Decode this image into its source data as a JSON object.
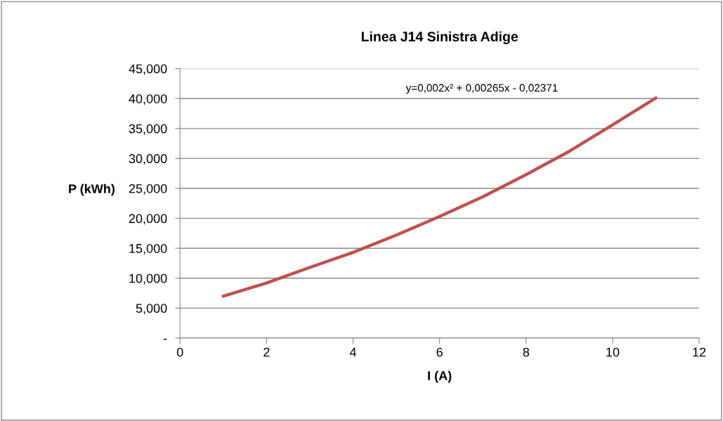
{
  "chart_data": {
    "type": "line",
    "title": "Linea J14 Sinistra Adige",
    "xlabel": "I (A)",
    "ylabel": "P (kWh)",
    "annotations": [
      "y=0,002x² + 0,00265x - 0,02371"
    ],
    "x": [
      1,
      2,
      3,
      4,
      5,
      6,
      7,
      8,
      9,
      10,
      11
    ],
    "series": [
      {
        "color": "#c0504d",
        "values": [
          7000,
          9200,
          11800,
          14300,
          17200,
          20300,
          23600,
          27300,
          31200,
          35600,
          40100
        ]
      }
    ],
    "xlim": [
      0,
      12
    ],
    "xticks": [
      0,
      2,
      4,
      6,
      8,
      10,
      12
    ],
    "ylim": [
      0,
      45000
    ],
    "yticks": [
      {
        "value": 0,
        "label": "-"
      },
      {
        "value": 5000,
        "label": "5,000"
      },
      {
        "value": 10000,
        "label": "10,000"
      },
      {
        "value": 15000,
        "label": "15,000"
      },
      {
        "value": 20000,
        "label": "20,000"
      },
      {
        "value": 25000,
        "label": "25,000"
      },
      {
        "value": 30000,
        "label": "30,000"
      },
      {
        "value": 35000,
        "label": "35,000"
      },
      {
        "value": 40000,
        "label": "40,000"
      },
      {
        "value": 45000,
        "label": "45,000"
      }
    ],
    "grid": "y",
    "legend": false,
    "marker": "none",
    "line_style": "solid"
  }
}
